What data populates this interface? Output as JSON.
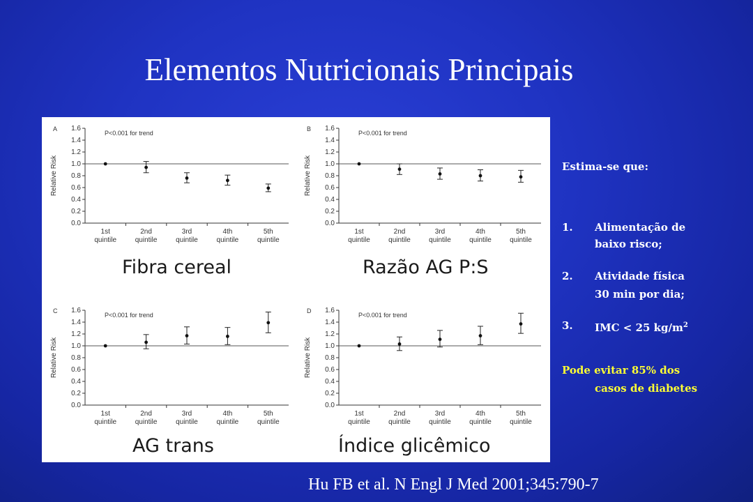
{
  "slide": {
    "title": "Elementos Nutricionais Principais",
    "reference": "Hu FB et al. N Engl J Med 2001;345:790-7"
  },
  "captions": {
    "a": "Fibra cereal",
    "b": "Razão AG P:S",
    "c": "AG trans",
    "d": "Índice glicêmico"
  },
  "sidebar": {
    "lead": "Estima-se que:",
    "items": [
      {
        "num": "1.",
        "line1": "Alimentação de",
        "line2": "baixo risco;"
      },
      {
        "num": "2.",
        "line1": "Atividade física",
        "line2": "30 min por dia;"
      },
      {
        "num": "3.",
        "line1": "IMC < 25 kg/m",
        "sup": "2"
      }
    ],
    "conclusion_line1": "Pode evitar 85% dos",
    "conclusion_line2": "casos de diabetes"
  },
  "colors": {
    "background": "#1f33c2",
    "conclusion": "#ffff33",
    "text": "#ffffff"
  },
  "chart_data": [
    {
      "type": "scatter",
      "panel": "A",
      "annotation": "P<0.001 for trend",
      "ylabel": "Relative Risk",
      "categories": [
        "1st quintile",
        "2nd quintile",
        "3rd quintile",
        "4th quintile",
        "5th quintile"
      ],
      "values": [
        1.0,
        0.94,
        0.76,
        0.72,
        0.59
      ],
      "ci_low": [
        1.0,
        0.85,
        0.68,
        0.64,
        0.53
      ],
      "ci_high": [
        1.0,
        1.04,
        0.85,
        0.81,
        0.66
      ],
      "ylim": [
        0.0,
        1.6
      ],
      "yticks": [
        "0.0",
        "0.2",
        "0.4",
        "0.6",
        "0.8",
        "1.0",
        "1.2",
        "1.4",
        "1.6"
      ]
    },
    {
      "type": "scatter",
      "panel": "B",
      "annotation": "P<0.001 for trend",
      "ylabel": "Relative Risk",
      "categories": [
        "1st quintile",
        "2nd quintile",
        "3rd quintile",
        "4th quintile",
        "5th quintile"
      ],
      "values": [
        1.0,
        0.91,
        0.83,
        0.8,
        0.78
      ],
      "ci_low": [
        1.0,
        0.82,
        0.74,
        0.71,
        0.69
      ],
      "ci_high": [
        1.0,
        1.0,
        0.93,
        0.9,
        0.89
      ],
      "ylim": [
        0.0,
        1.6
      ],
      "yticks": [
        "0.0",
        "0.2",
        "0.4",
        "0.6",
        "0.8",
        "1.0",
        "1.2",
        "1.4",
        "1.6"
      ]
    },
    {
      "type": "scatter",
      "panel": "C",
      "annotation": "P<0.001 for trend",
      "ylabel": "Relative Risk",
      "categories": [
        "1st quintile",
        "2nd quintile",
        "3rd quintile",
        "4th quintile",
        "5th quintile"
      ],
      "values": [
        1.0,
        1.06,
        1.17,
        1.16,
        1.39
      ],
      "ci_low": [
        1.0,
        0.95,
        1.03,
        1.02,
        1.22
      ],
      "ci_high": [
        1.0,
        1.19,
        1.32,
        1.31,
        1.57
      ],
      "ylim": [
        0.0,
        1.6
      ],
      "yticks": [
        "0.0",
        "0.2",
        "0.4",
        "0.6",
        "0.8",
        "1.0",
        "1.2",
        "1.4",
        "1.6"
      ]
    },
    {
      "type": "scatter",
      "panel": "D",
      "annotation": "P<0.001 for trend",
      "ylabel": "Relative Risk",
      "categories": [
        "1st quintile",
        "2nd quintile",
        "3rd quintile",
        "4th quintile",
        "5th quintile"
      ],
      "values": [
        1.0,
        1.03,
        1.11,
        1.17,
        1.37
      ],
      "ci_low": [
        1.0,
        0.92,
        0.98,
        1.02,
        1.21
      ],
      "ci_high": [
        1.0,
        1.15,
        1.26,
        1.33,
        1.55
      ],
      "ylim": [
        0.0,
        1.6
      ],
      "yticks": [
        "0.0",
        "0.2",
        "0.4",
        "0.6",
        "0.8",
        "1.0",
        "1.2",
        "1.4",
        "1.6"
      ]
    }
  ]
}
